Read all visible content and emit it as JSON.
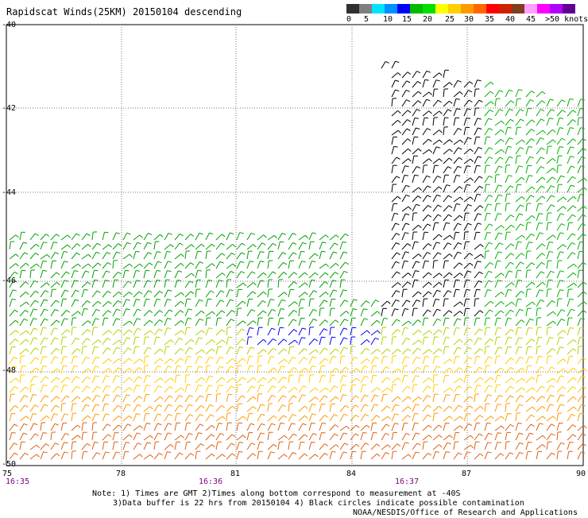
{
  "title": "Rapidscat Winds(25KM) 20150104 descending",
  "legend": {
    "colors": [
      "#303030",
      "#7f7f7f",
      "#00e5ff",
      "#0090ff",
      "#0000ff",
      "#00bb00",
      "#00e000",
      "#ffff00",
      "#ffd000",
      "#ff9900",
      "#ff6600",
      "#ff0000",
      "#cc2200",
      "#7f3f1f",
      "#ffa0ff",
      "#ff00ff",
      "#b000ff",
      "#600090"
    ],
    "labels": [
      "0",
      "5",
      "10",
      "15",
      "20",
      "25",
      "30",
      "35",
      "40",
      "45",
      ">50 knots"
    ]
  },
  "axes": {
    "y_labels": [
      "-40",
      "-42",
      "-44",
      "-46",
      "-48",
      "-50"
    ],
    "x_labels": [
      "75",
      "78",
      "81",
      "84",
      "87",
      "90"
    ],
    "time_labels": [
      "16:35",
      "16:36",
      "16:37"
    ]
  },
  "notes": [
    "Note: 1) Times are GMT 2)Times along bottom correspond to measurement at -40S",
    "3)Data buffer is 22 hrs from 20150104 4) Black circles indicate possible contamination",
    "NOAA/NESDIS/Office of Research and Applications"
  ]
}
